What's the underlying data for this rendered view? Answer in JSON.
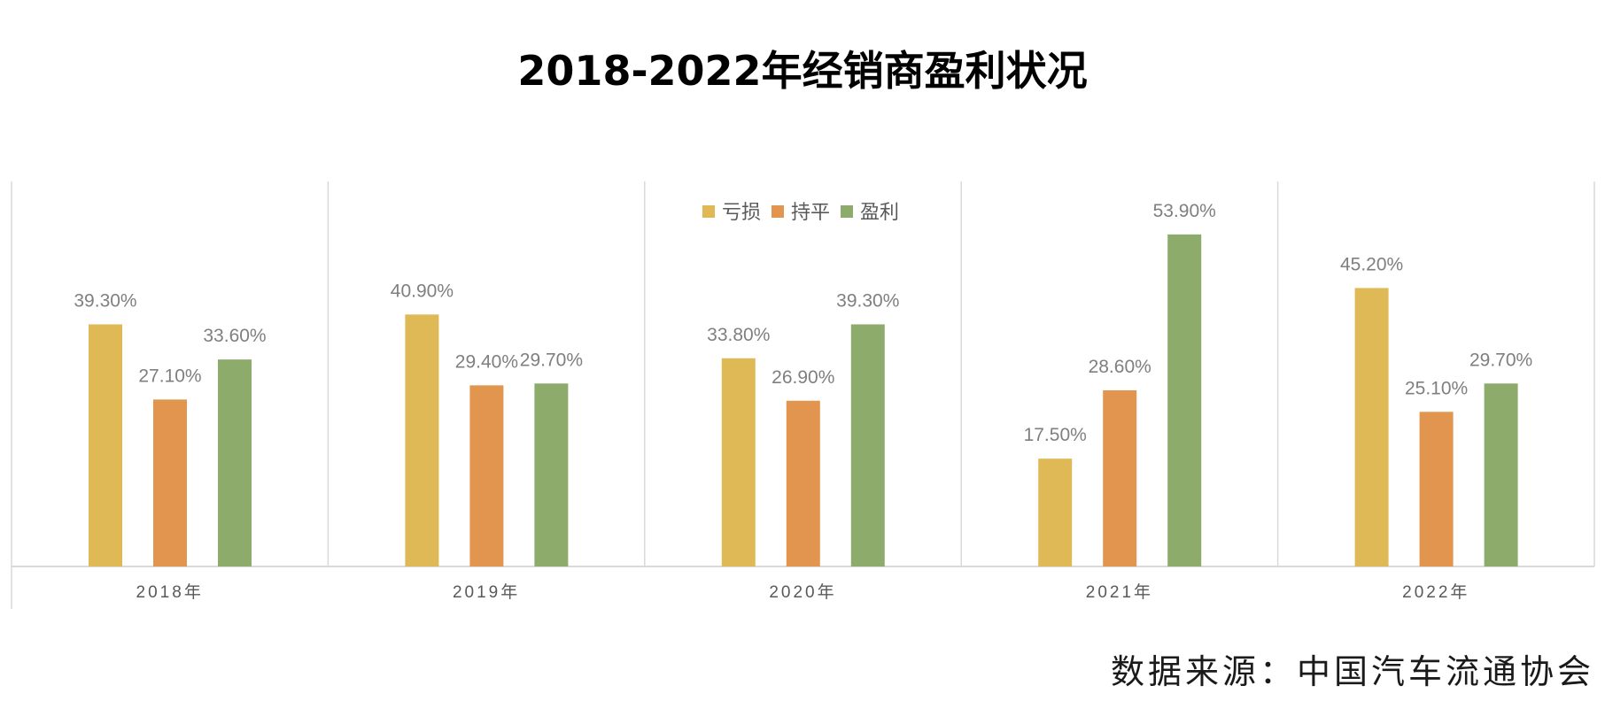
{
  "title": "2018-2022年经销商盈利状况",
  "source": "数据来源：中国汽车流通协会",
  "chart_data": {
    "type": "bar",
    "categories": [
      "2018年",
      "2019年",
      "2020年",
      "2021年",
      "2022年"
    ],
    "series": [
      {
        "name": "亏损",
        "color": "#dfb955",
        "values": [
          39.3,
          40.9,
          33.8,
          17.5,
          45.2
        ],
        "labels": [
          "39.30%",
          "40.90%",
          "33.80%",
          "17.50%",
          "45.20%"
        ]
      },
      {
        "name": "持平",
        "color": "#e2954e",
        "values": [
          27.1,
          29.4,
          26.9,
          28.6,
          25.1
        ],
        "labels": [
          "27.10%",
          "29.40%",
          "26.90%",
          "28.60%",
          "25.10%"
        ]
      },
      {
        "name": "盈利",
        "color": "#8dab6b",
        "values": [
          33.6,
          29.7,
          39.3,
          53.9,
          29.7
        ],
        "labels": [
          "33.60%",
          "29.70%",
          "39.30%",
          "53.90%",
          "29.70%"
        ]
      }
    ],
    "unit": "%",
    "ylim": [
      0,
      60
    ],
    "grid": false,
    "legend_position": "top-center"
  }
}
